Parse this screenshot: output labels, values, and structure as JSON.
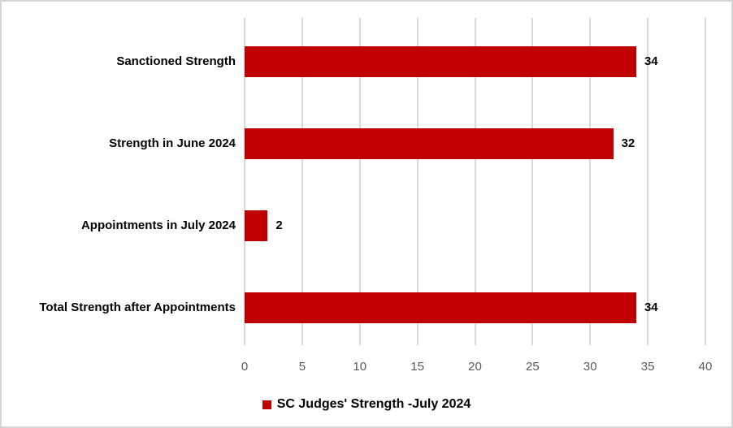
{
  "window": {
    "background": "#ffffff",
    "border_color": "#d6d6d6"
  },
  "chart_data": {
    "type": "bar",
    "orientation": "horizontal",
    "title": "",
    "xlabel": "",
    "ylabel": "",
    "categories": [
      "Sanctioned Strength",
      "Strength in June 2024",
      "Appointments in July 2024",
      "Total Strength after Appointments"
    ],
    "series": [
      {
        "name": "SC Judges' Strength -July 2024",
        "values": [
          34,
          32,
          2,
          34
        ]
      }
    ],
    "data_labels": [
      "34",
      "32",
      "2",
      "34"
    ],
    "xlim": [
      0,
      40
    ],
    "xticks": [
      0,
      5,
      10,
      15,
      20,
      25,
      30,
      35,
      40
    ],
    "grid": "vertical-only",
    "legend_position": "bottom-center",
    "colors": {
      "bar": "#c00000",
      "gridline": "#d9d9d9",
      "tick_label": "#595959",
      "category_label": "#000000",
      "data_label": "#000000",
      "legend_swatch": "#c00000"
    }
  }
}
